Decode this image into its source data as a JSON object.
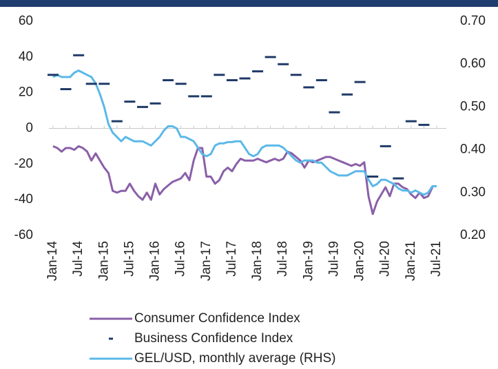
{
  "chart_data": {
    "type": "line",
    "categories": [
      "Jan-14",
      null,
      null,
      null,
      null,
      null,
      "Jul-14",
      null,
      null,
      null,
      null,
      null,
      "Jan-15",
      null,
      null,
      null,
      null,
      null,
      "Jul-15",
      null,
      null,
      null,
      null,
      null,
      "Jan-16",
      null,
      null,
      null,
      null,
      null,
      "Jul-16",
      null,
      null,
      null,
      null,
      null,
      "Jan-17",
      null,
      null,
      null,
      null,
      null,
      "Jul-17",
      null,
      null,
      null,
      null,
      null,
      "Jan-18",
      null,
      null,
      null,
      null,
      null,
      "Jul-18",
      null,
      null,
      null,
      null,
      null,
      "Jan-19",
      null,
      null,
      null,
      null,
      null,
      "Jul-19",
      null,
      null,
      null,
      null,
      null,
      "Jan-20",
      null,
      null,
      null,
      null,
      null,
      "Jul-20",
      null,
      null,
      null,
      null,
      null,
      "Jan-21",
      null,
      null,
      null,
      null,
      null,
      "Jul-21"
    ],
    "series": [
      {
        "name": "Consumer Confidence Index",
        "color": "#8a5fa8",
        "style": "line",
        "axis": "y",
        "values": [
          -10,
          -11,
          -13,
          -11,
          -11,
          -12,
          -10,
          -11,
          -13,
          -18,
          -14,
          -18,
          -22,
          -25,
          -35,
          -36,
          -35,
          -35,
          -31,
          -35,
          -38,
          -40,
          -36,
          -40,
          -31,
          -37,
          -34,
          -32,
          -30,
          -29,
          -28,
          -25,
          -29,
          -18,
          -11,
          -11,
          -27,
          -27,
          -31,
          -29,
          -24,
          -22,
          -24,
          -20,
          -17,
          -18,
          -18,
          -18,
          -17,
          -18,
          -19,
          -18,
          -17,
          -18,
          -17,
          -13,
          -14,
          -16,
          -18,
          -22,
          -18,
          -19,
          -18,
          -17,
          -16,
          -16,
          -17,
          -18,
          -19,
          -20,
          -21,
          -20,
          -21,
          -19,
          -38,
          -48,
          -41,
          -37,
          -33,
          -38,
          -31,
          -31,
          -33,
          -34,
          -37,
          -39,
          -36,
          -39,
          -38,
          -33,
          null
        ]
      },
      {
        "name": "Business Confidence Index",
        "color": "#1f3a68",
        "style": "dash",
        "axis": "y",
        "values": [
          30,
          null,
          null,
          22,
          null,
          null,
          41,
          null,
          null,
          25,
          null,
          null,
          25,
          null,
          null,
          4,
          null,
          null,
          15,
          null,
          null,
          12,
          null,
          null,
          14,
          null,
          null,
          27,
          null,
          null,
          25,
          null,
          null,
          18,
          null,
          null,
          18,
          null,
          null,
          30,
          null,
          null,
          27,
          null,
          null,
          28,
          null,
          null,
          32,
          null,
          null,
          40,
          null,
          null,
          36,
          null,
          null,
          30,
          null,
          null,
          23,
          null,
          null,
          27,
          null,
          null,
          9,
          null,
          null,
          19,
          null,
          null,
          26,
          null,
          null,
          -27,
          null,
          null,
          -10,
          null,
          null,
          -28,
          null,
          null,
          4,
          null,
          null,
          2,
          null,
          null,
          null
        ]
      },
      {
        "name": "GEL/USD, monthly average (RHS)",
        "color": "#5bb8e8",
        "style": "line",
        "axis": "y2",
        "values": [
          0.57,
          0.575,
          0.57,
          0.57,
          0.57,
          0.58,
          0.585,
          0.58,
          0.575,
          0.57,
          0.555,
          0.53,
          0.5,
          0.46,
          0.44,
          0.43,
          0.42,
          0.43,
          0.425,
          0.42,
          0.42,
          0.42,
          0.415,
          0.41,
          0.42,
          0.43,
          0.445,
          0.455,
          0.455,
          0.45,
          0.43,
          0.43,
          0.425,
          0.42,
          0.405,
          0.39,
          0.385,
          0.39,
          0.41,
          0.415,
          0.415,
          0.418,
          0.418,
          0.42,
          0.42,
          0.405,
          0.39,
          0.385,
          0.39,
          0.405,
          0.41,
          0.41,
          0.41,
          0.41,
          0.405,
          0.395,
          0.385,
          0.375,
          0.37,
          0.375,
          0.375,
          0.375,
          0.37,
          0.37,
          0.36,
          0.35,
          0.345,
          0.34,
          0.34,
          0.34,
          0.345,
          0.35,
          0.35,
          0.35,
          0.33,
          0.315,
          0.32,
          0.33,
          0.33,
          0.325,
          0.32,
          0.31,
          0.305,
          0.305,
          0.3,
          0.305,
          0.3,
          0.295,
          0.3,
          0.315,
          0.315
        ]
      }
    ],
    "ylim": [
      -60,
      60
    ],
    "yticks": [
      -60,
      -40,
      -20,
      0,
      20,
      40,
      60
    ],
    "y2lim": [
      0.2,
      0.7
    ],
    "y2ticks": [
      {
        "value": 0.2,
        "label": "0.20"
      },
      {
        "value": 0.3,
        "label": "0.30"
      },
      {
        "value": 0.4,
        "label": "0.40"
      },
      {
        "value": 0.5,
        "label": "0.50"
      },
      {
        "value": 0.6,
        "label": "0.60"
      },
      {
        "value": 0.7,
        "label": "0.70"
      }
    ]
  }
}
